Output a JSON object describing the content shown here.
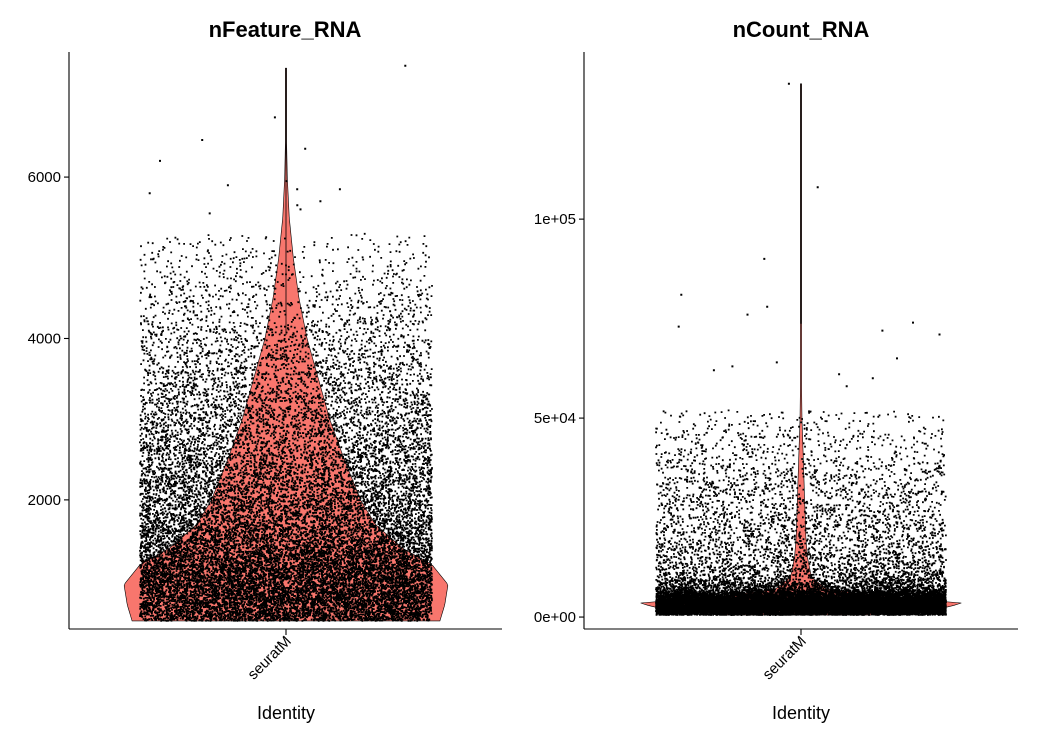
{
  "colors": {
    "violin_fill": "#F8766D",
    "point": "#000000",
    "axis": "#000000",
    "background": "#ffffff"
  },
  "chart_data": [
    {
      "type": "violin",
      "title": "nFeature_RNA",
      "xlabel": "Identity",
      "ylabel": "",
      "categories": [
        "seuratM"
      ],
      "ylim": [
        400,
        7550
      ],
      "y_ticks": [
        2000,
        4000,
        6000
      ],
      "y_tick_labels": [
        "2000",
        "4000",
        "6000"
      ],
      "grid": false,
      "legend": "none",
      "distribution": {
        "min": 500,
        "max": 7350,
        "mode": 950,
        "density_profile": [
          [
            500,
            0.95
          ],
          [
            700,
            0.98
          ],
          [
            950,
            1.0
          ],
          [
            1200,
            0.9
          ],
          [
            1400,
            0.72
          ],
          [
            1700,
            0.55
          ],
          [
            2000,
            0.46
          ],
          [
            2500,
            0.36
          ],
          [
            3000,
            0.27
          ],
          [
            3500,
            0.2
          ],
          [
            4000,
            0.13
          ],
          [
            4500,
            0.08
          ],
          [
            5000,
            0.045
          ],
          [
            5500,
            0.02
          ],
          [
            6000,
            0.008
          ],
          [
            6500,
            0.003
          ],
          [
            7350,
            0.0
          ]
        ]
      },
      "points": {
        "count_shown": 20000,
        "dense_range": [
          500,
          5300
        ],
        "outliers": [
          7380,
          6740,
          6460,
          6350,
          6200,
          5950,
          5900,
          5850,
          5850,
          5800,
          5700,
          5650,
          5600,
          5550
        ]
      }
    },
    {
      "type": "violin",
      "title": "nCount_RNA",
      "xlabel": "Identity",
      "ylabel": "",
      "categories": [
        "seuratM"
      ],
      "ylim": [
        -3000,
        142000
      ],
      "y_ticks": [
        0,
        50000,
        100000
      ],
      "y_tick_labels": [
        "0e+00",
        "5e+04",
        "1e+05"
      ],
      "grid": false,
      "legend": "none",
      "distribution": {
        "min": 500,
        "max": 134000,
        "mode": 3500,
        "density_profile": [
          [
            500,
            0.45
          ],
          [
            2000,
            0.85
          ],
          [
            3500,
            1.0
          ],
          [
            5000,
            0.55
          ],
          [
            7000,
            0.16
          ],
          [
            10000,
            0.065
          ],
          [
            15000,
            0.04
          ],
          [
            20000,
            0.03
          ],
          [
            30000,
            0.022
          ],
          [
            40000,
            0.014
          ],
          [
            50000,
            0.006
          ],
          [
            60000,
            0.003
          ],
          [
            80000,
            0.0015
          ],
          [
            100000,
            0.001
          ],
          [
            134000,
            0.0
          ]
        ]
      },
      "points": {
        "count_shown": 20000,
        "dense_range": [
          500,
          52000
        ],
        "outliers": [
          134000,
          108000,
          90000,
          81000,
          78000,
          76000,
          74000,
          73000,
          72000,
          71000,
          65000,
          64000,
          63000,
          62000,
          61000,
          60000,
          58000
        ]
      }
    }
  ]
}
